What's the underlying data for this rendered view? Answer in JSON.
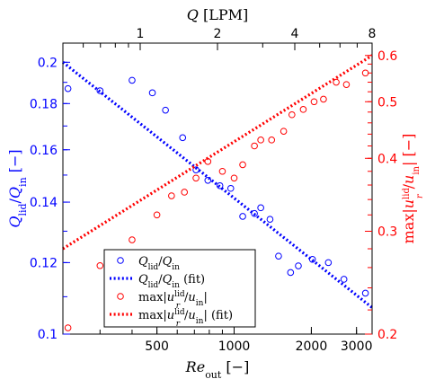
{
  "chart_data": {
    "type": "scatter",
    "x_scale": "log",
    "y_scale": "log",
    "xlim": [
      215,
      3450
    ],
    "ylim_left": [
      0.1,
      0.21
    ],
    "ylim_right": [
      0.2,
      0.63
    ],
    "top_axis_lim": [
      0.5,
      8
    ],
    "colors": {
      "left": "#0000ff",
      "right": "#ff0000",
      "axes": "#000000"
    },
    "x_ticks": [
      {
        "value": 500,
        "label": "500"
      },
      {
        "value": 1000,
        "label": "1000"
      },
      {
        "value": 2000,
        "label": "2000"
      },
      {
        "value": 3000,
        "label": "3000"
      }
    ],
    "top_ticks": [
      {
        "value": 1,
        "label": "1"
      },
      {
        "value": 2,
        "label": "2"
      },
      {
        "value": 4,
        "label": "4"
      },
      {
        "value": 8,
        "label": "8"
      }
    ],
    "y_left_ticks": [
      {
        "value": 0.1,
        "label": "0.1"
      },
      {
        "value": 0.12,
        "label": "0.12"
      },
      {
        "value": 0.14,
        "label": "0.14"
      },
      {
        "value": 0.16,
        "label": "0.16"
      },
      {
        "value": 0.18,
        "label": "0.18"
      },
      {
        "value": 0.2,
        "label": "0.2"
      }
    ],
    "y_right_ticks": [
      {
        "value": 0.2,
        "label": "0.2"
      },
      {
        "value": 0.3,
        "label": "0.3"
      },
      {
        "value": 0.4,
        "label": "0.4"
      },
      {
        "value": 0.5,
        "label": "0.5"
      },
      {
        "value": 0.6,
        "label": "0.6"
      }
    ],
    "xlabel": {
      "main": "Re",
      "sub": "out",
      "rest": "[−]"
    },
    "top_label": {
      "main": "Q",
      "rest": "[LPM]"
    },
    "ylabel_left": {
      "num": "Q",
      "num_sub": "lid",
      "den": "Q",
      "den_sub": "in",
      "rest": "[−]"
    },
    "ylabel_right": {
      "pre": "max|",
      "main": "u",
      "sub": "r",
      "sup": "lid",
      "den": "u",
      "den_sub": "in",
      "rest": "| [−]"
    },
    "series": [
      {
        "name": "Q_lid/Q_in",
        "axis": "left",
        "style": "markers",
        "x": [
          225,
          300,
          400,
          480,
          540,
          630,
          710,
          790,
          880,
          970,
          1080,
          1200,
          1270,
          1380,
          1490,
          1660,
          1780,
          2020,
          2330,
          2680,
          3250
        ],
        "y": [
          0.187,
          0.186,
          0.191,
          0.185,
          0.177,
          0.165,
          0.152,
          0.148,
          0.146,
          0.145,
          0.135,
          0.136,
          0.138,
          0.134,
          0.122,
          0.117,
          0.119,
          0.121,
          0.12,
          0.115,
          0.111
        ]
      },
      {
        "name": "Q_lid/Q_in (fit)",
        "axis": "left",
        "style": "dotted-line",
        "x": [
          215,
          3450
        ],
        "y": [
          0.2,
          0.107
        ]
      },
      {
        "name": "max|u_r^lid/u_in|",
        "axis": "right",
        "style": "markers",
        "x": [
          225,
          300,
          400,
          500,
          570,
          640,
          710,
          790,
          900,
          1000,
          1080,
          1200,
          1270,
          1400,
          1560,
          1680,
          1860,
          2050,
          2230,
          2500,
          2740,
          3250
        ],
        "y": [
          0.205,
          0.262,
          0.29,
          0.32,
          0.345,
          0.35,
          0.37,
          0.395,
          0.38,
          0.37,
          0.39,
          0.42,
          0.43,
          0.43,
          0.445,
          0.475,
          0.485,
          0.5,
          0.505,
          0.54,
          0.535,
          0.56
        ]
      },
      {
        "name": "max|u_r^lid/u_in| (fit)",
        "axis": "right",
        "style": "dotted-line",
        "x": [
          215,
          3450
        ],
        "y": [
          0.28,
          0.6
        ]
      }
    ],
    "legend": {
      "placement": "bottom-left",
      "entries": [
        {
          "kind": "marker",
          "color": "blue",
          "main": "Q",
          "sub": "lid",
          "den": "Q",
          "den_sub": "in",
          "suffix": ""
        },
        {
          "kind": "line",
          "color": "blue",
          "main": "Q",
          "sub": "lid",
          "den": "Q",
          "den_sub": "in",
          "suffix": " (fit)"
        },
        {
          "kind": "marker",
          "color": "red",
          "pre": "max|",
          "main": "u",
          "sub": "r",
          "sup": "lid",
          "den": "u",
          "den_sub": "in",
          "suffix": "|"
        },
        {
          "kind": "line",
          "color": "red",
          "pre": "max|",
          "main": "u",
          "sub": "r",
          "sup": "lid",
          "den": "u",
          "den_sub": "in",
          "suffix": "| (fit)"
        }
      ]
    }
  }
}
